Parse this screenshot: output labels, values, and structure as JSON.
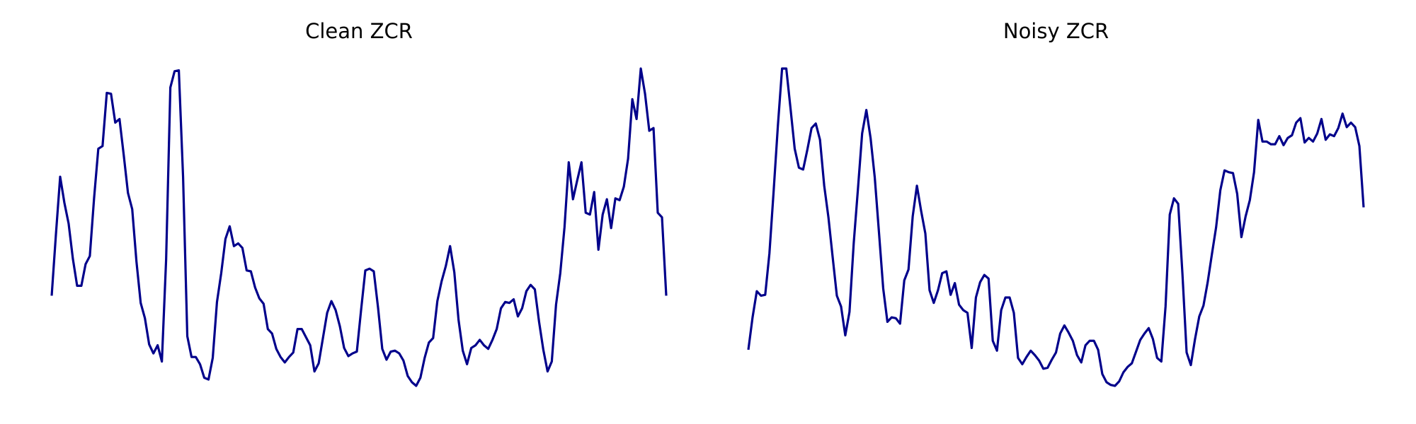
{
  "chart_data": [
    {
      "type": "line",
      "title": "Clean ZCR",
      "color": "#00008b",
      "values": [
        112,
        180,
        244,
        215,
        192,
        153,
        123,
        123,
        147,
        156,
        220,
        275,
        278,
        337,
        336,
        304,
        308,
        268,
        226,
        208,
        150,
        104,
        87,
        58,
        48,
        57,
        39,
        152,
        343,
        361,
        362,
        244,
        67,
        44,
        44,
        36,
        21,
        19,
        43,
        105,
        137,
        175,
        189,
        167,
        170,
        165,
        140,
        139,
        121,
        109,
        103,
        75,
        70,
        53,
        44,
        38,
        44,
        49,
        75,
        75,
        66,
        57,
        28,
        37,
        65,
        93,
        106,
        96,
        78,
        54,
        45,
        48,
        50,
        96,
        140,
        142,
        139,
        99,
        53,
        41,
        50,
        51,
        48,
        40,
        23,
        16,
        12,
        21,
        43,
        60,
        65,
        106,
        128,
        145,
        167,
        138,
        85,
        51,
        36,
        54,
        57,
        63,
        57,
        53,
        63,
        75,
        98,
        105,
        104,
        108,
        89,
        98,
        117,
        124,
        119,
        83,
        52,
        28,
        39,
        102,
        137,
        188,
        260,
        219,
        240,
        260,
        204,
        202,
        227,
        163,
        202,
        219,
        187,
        220,
        218,
        233,
        264,
        330,
        308,
        364,
        336,
        295,
        298,
        204,
        199,
        112
      ]
    },
    {
      "type": "line",
      "title": "Noisy ZCR",
      "color": "#00008b",
      "values": [
        52,
        88,
        117,
        112,
        113,
        159,
        228,
        300,
        364,
        364,
        320,
        275,
        254,
        252,
        274,
        298,
        303,
        285,
        234,
        199,
        155,
        112,
        100,
        68,
        94,
        170,
        230,
        292,
        318,
        287,
        243,
        182,
        120,
        83,
        88,
        87,
        81,
        129,
        141,
        200,
        234,
        206,
        181,
        118,
        104,
        118,
        137,
        139,
        113,
        126,
        102,
        96,
        93,
        54,
        110,
        127,
        135,
        131,
        62,
        51,
        96,
        110,
        110,
        93,
        43,
        36,
        44,
        51,
        46,
        40,
        31,
        32,
        41,
        49,
        70,
        79,
        71,
        62,
        46,
        38,
        57,
        62,
        62,
        52,
        25,
        16,
        13,
        12,
        17,
        27,
        33,
        37,
        50,
        63,
        70,
        76,
        64,
        43,
        39,
        100,
        202,
        220,
        214,
        137,
        49,
        35,
        64,
        89,
        101,
        127,
        158,
        188,
        229,
        251,
        249,
        248,
        225,
        177,
        200,
        218,
        249,
        307,
        283,
        283,
        280,
        280,
        289,
        279,
        287,
        290,
        304,
        309,
        282,
        287,
        283,
        292,
        308,
        285,
        291,
        289,
        298,
        314,
        299,
        304,
        299,
        278,
        210
      ]
    }
  ]
}
